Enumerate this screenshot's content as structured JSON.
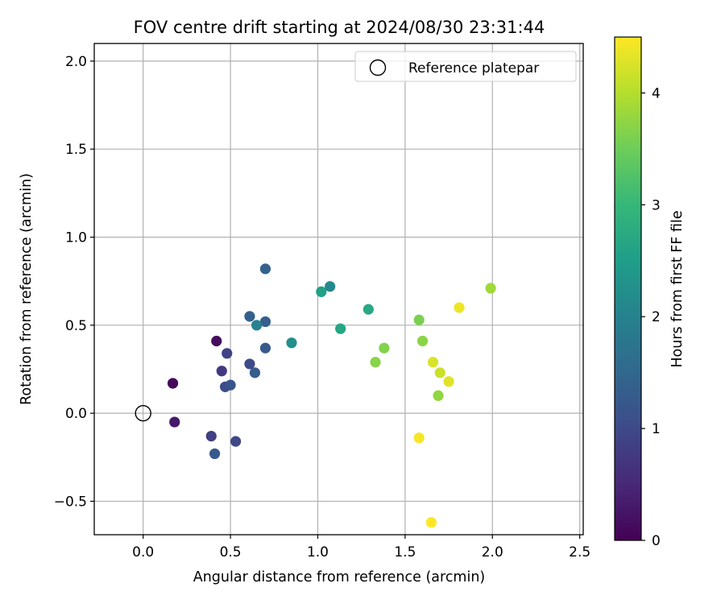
{
  "chart_data": {
    "type": "scatter",
    "title": "FOV centre drift starting at 2024/08/30 23:31:44",
    "xlabel": "Angular distance from reference (arcmin)",
    "ylabel": "Rotation from reference (arcmin)",
    "xlim": [
      -0.28,
      2.52
    ],
    "ylim": [
      -0.69,
      2.1
    ],
    "xticks": [
      0.0,
      0.5,
      1.0,
      1.5,
      2.0,
      2.5
    ],
    "xtick_labels": [
      "0.0",
      "0.5",
      "1.0",
      "1.5",
      "2.0",
      "2.5"
    ],
    "yticks": [
      -0.5,
      0.0,
      0.5,
      1.0,
      1.5,
      2.0
    ],
    "ytick_labels": [
      "−0.5",
      "0.0",
      "0.5",
      "1.0",
      "1.5",
      "2.0"
    ],
    "grid": true,
    "legend": {
      "placement": "top-right",
      "entries": [
        "Reference platepar"
      ]
    },
    "reference_point": {
      "x": 0.0,
      "y": 0.0,
      "marker": "open-circle",
      "color": "#000000"
    },
    "colorbar": {
      "label": "Hours from first FF file",
      "colormap": "viridis",
      "range": [
        0,
        4.5
      ],
      "ticks": [
        0,
        1,
        2,
        3,
        4
      ],
      "tick_labels": [
        "0",
        "1",
        "2",
        "3",
        "4"
      ]
    },
    "points": [
      {
        "x": 0.17,
        "y": 0.17,
        "hours": 0.1
      },
      {
        "x": 0.42,
        "y": 0.41,
        "hours": 0.15
      },
      {
        "x": 0.18,
        "y": -0.05,
        "hours": 0.3
      },
      {
        "x": 0.45,
        "y": 0.24,
        "hours": 0.75
      },
      {
        "x": 0.39,
        "y": -0.13,
        "hours": 0.85
      },
      {
        "x": 0.48,
        "y": 0.34,
        "hours": 0.9
      },
      {
        "x": 0.53,
        "y": -0.16,
        "hours": 0.95
      },
      {
        "x": 0.61,
        "y": 0.28,
        "hours": 1.0
      },
      {
        "x": 0.47,
        "y": 0.15,
        "hours": 1.05
      },
      {
        "x": 0.5,
        "y": 0.16,
        "hours": 1.15
      },
      {
        "x": 0.41,
        "y": -0.23,
        "hours": 1.25
      },
      {
        "x": 0.7,
        "y": 0.37,
        "hours": 1.25
      },
      {
        "x": 0.64,
        "y": 0.23,
        "hours": 1.3
      },
      {
        "x": 0.61,
        "y": 0.55,
        "hours": 1.35
      },
      {
        "x": 0.7,
        "y": 0.52,
        "hours": 1.35
      },
      {
        "x": 0.7,
        "y": 0.82,
        "hours": 1.4
      },
      {
        "x": 0.65,
        "y": 0.5,
        "hours": 2.0
      },
      {
        "x": 1.07,
        "y": 0.72,
        "hours": 2.1
      },
      {
        "x": 0.85,
        "y": 0.4,
        "hours": 2.25
      },
      {
        "x": 1.02,
        "y": 0.69,
        "hours": 2.55
      },
      {
        "x": 1.13,
        "y": 0.48,
        "hours": 2.65
      },
      {
        "x": 1.29,
        "y": 0.59,
        "hours": 2.7
      },
      {
        "x": 1.58,
        "y": 0.53,
        "hours": 3.6
      },
      {
        "x": 1.38,
        "y": 0.37,
        "hours": 3.65
      },
      {
        "x": 1.33,
        "y": 0.29,
        "hours": 3.7
      },
      {
        "x": 1.6,
        "y": 0.41,
        "hours": 3.7
      },
      {
        "x": 1.69,
        "y": 0.1,
        "hours": 3.75
      },
      {
        "x": 1.99,
        "y": 0.71,
        "hours": 3.85
      },
      {
        "x": 1.7,
        "y": 0.23,
        "hours": 4.15
      },
      {
        "x": 1.66,
        "y": 0.29,
        "hours": 4.25
      },
      {
        "x": 1.75,
        "y": 0.18,
        "hours": 4.3
      },
      {
        "x": 1.81,
        "y": 0.6,
        "hours": 4.4
      },
      {
        "x": 1.58,
        "y": -0.14,
        "hours": 4.45
      },
      {
        "x": 1.65,
        "y": -0.62,
        "hours": 4.5
      }
    ]
  }
}
